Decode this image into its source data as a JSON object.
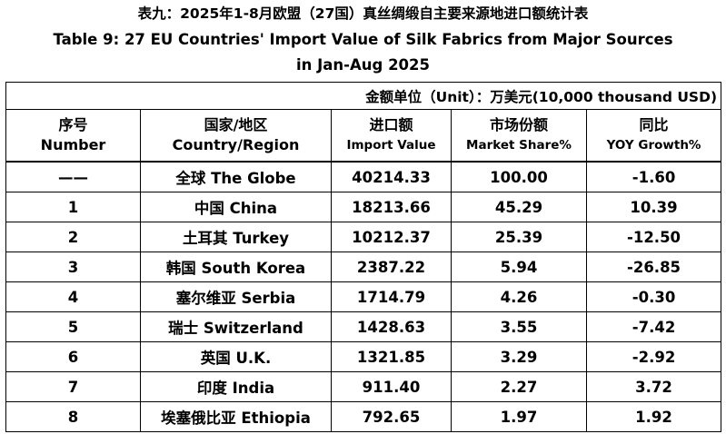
{
  "title": {
    "cn": "表九：2025年1-8月欧盟（27国）真丝绸缎自主要来源地进口额统计表",
    "en_line1": "Table 9: 27 EU Countries' Import Value of Silk Fabrics from Major Sources",
    "en_line2": "in Jan-Aug 2025"
  },
  "unit": "金额单位（Unit）：万美元(10,000 thousand USD)",
  "headers": [
    {
      "cn": "序号",
      "en": "Number"
    },
    {
      "cn": "国家/地区",
      "en": "Country/Region"
    },
    {
      "cn": "进口额",
      "en": "Import Value"
    },
    {
      "cn": "市场份额",
      "en": "Market Share%"
    },
    {
      "cn": "同比",
      "en": "YOY Growth%"
    }
  ],
  "rows": [
    {
      "number": "——",
      "country": "全球 The Globe",
      "import_value": "40214.33",
      "market_share": "100.00",
      "yoy": "-1.60"
    },
    {
      "number": "1",
      "country": "中国 China",
      "import_value": "18213.66",
      "market_share": "45.29",
      "yoy": "10.39"
    },
    {
      "number": "2",
      "country": "土耳其 Turkey",
      "import_value": "10212.37",
      "market_share": "25.39",
      "yoy": "-12.50"
    },
    {
      "number": "3",
      "country": "韩国 South Korea",
      "import_value": "2387.22",
      "market_share": "5.94",
      "yoy": "-26.85"
    },
    {
      "number": "4",
      "country": "塞尔维亚 Serbia",
      "import_value": "1714.79",
      "market_share": "4.26",
      "yoy": "-0.30"
    },
    {
      "number": "5",
      "country": "瑞士 Switzerland",
      "import_value": "1428.63",
      "market_share": "3.55",
      "yoy": "-7.42"
    },
    {
      "number": "6",
      "country": "英国 U.K.",
      "import_value": "1321.85",
      "market_share": "3.29",
      "yoy": "-2.92"
    },
    {
      "number": "7",
      "country": "印度 India",
      "import_value": "911.40",
      "market_share": "2.27",
      "yoy": "3.72"
    },
    {
      "number": "8",
      "country": "埃塞俄比亚 Ethiopia",
      "import_value": "792.65",
      "market_share": "1.97",
      "yoy": "1.92"
    }
  ]
}
